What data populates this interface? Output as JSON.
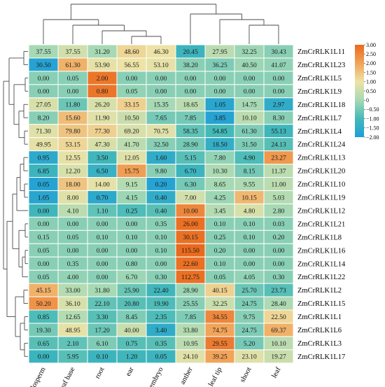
{
  "chart_data": {
    "type": "heatmap",
    "columns": [
      "endosperm",
      "leaf base",
      "root",
      "ear",
      "embryo",
      "anther",
      "leaf tip",
      "shoot",
      "leaf"
    ],
    "rows": [
      "ZmCrRLK1L11",
      "ZmCrRLK1L23",
      "ZmCrRLK1L5",
      "ZmCrRLK1L9",
      "ZmCrRLK1L18",
      "ZmCrRLK1L7",
      "ZmCrRLK1L4",
      "ZmCrRLK1L24",
      "ZmCrRLK1L13",
      "ZmCrRLK1L20",
      "ZmCrRLK1L10",
      "ZmCrRLK1L19",
      "ZmCrRLK1L12",
      "ZmCrRLK1L21",
      "ZmCrRLK1L8",
      "ZmCrRLK1L16",
      "ZmCrRLK1L14",
      "ZmCrRLK1L22",
      "ZmCrRLK1L2",
      "ZmCrRLK1L15",
      "ZmCrRLK1L1",
      "ZmCrRLK1L6",
      "ZmCrRLK1L3",
      "ZmCrRLK1L17"
    ],
    "values": [
      [
        "37.55",
        "37.55",
        "31.20",
        "48.60",
        "46.30",
        "20.45",
        "27.95",
        "32.25",
        "30.43"
      ],
      [
        "30.50",
        "61.30",
        "53.90",
        "56.55",
        "53.10",
        "38.20",
        "36.25",
        "40.50",
        "41.07"
      ],
      [
        "0.00",
        "0.05",
        "2.00",
        "0.00",
        "0.00",
        "0.00",
        "0.00",
        "0.00",
        "0.00"
      ],
      [
        "0.00",
        "0.00",
        "0.80",
        "0.05",
        "0.00",
        "0.00",
        "0.00",
        "0.00",
        "0.00"
      ],
      [
        "27.05",
        "11.80",
        "26.20",
        "33.15",
        "15.35",
        "18.65",
        "1.05",
        "14.75",
        "2.97"
      ],
      [
        "8.20",
        "15.60",
        "11.90",
        "10.50",
        "7.65",
        "7.85",
        "3.85",
        "10.10",
        "8.30"
      ],
      [
        "71.30",
        "79.80",
        "77.30",
        "69.20",
        "70.75",
        "58.35",
        "54.85",
        "61.30",
        "55.13"
      ],
      [
        "49.95",
        "53.15",
        "47.30",
        "41.70",
        "32.50",
        "28.90",
        "18.50",
        "31.50",
        "24.13"
      ],
      [
        "0.95",
        "12.55",
        "3.50",
        "12.05",
        "1.60",
        "5.15",
        "7.80",
        "4.90",
        "23.27"
      ],
      [
        "6.85",
        "12.20",
        "6.50",
        "15.75",
        "9.80",
        "6.70",
        "10.30",
        "8.15",
        "11.37"
      ],
      [
        "0.05",
        "18.00",
        "14.00",
        "9.15",
        "0.20",
        "6.30",
        "8.65",
        "9.55",
        "11.00"
      ],
      [
        "1.05",
        "8.00",
        "0.70",
        "4.15",
        "0.40",
        "7.00",
        "4.25",
        "10.15",
        "5.03"
      ],
      [
        "0.00",
        "4.10",
        "1.10",
        "0.25",
        "0.40",
        "10.00",
        "3.45",
        "4.80",
        "2.80"
      ],
      [
        "0.00",
        "0.00",
        "0.00",
        "0.00",
        "0.35",
        "26.00",
        "0.10",
        "0.10",
        "0.03"
      ],
      [
        "0.15",
        "0.05",
        "0.10",
        "0.10",
        "0.10",
        "30.15",
        "0.25",
        "0.10",
        "0.20"
      ],
      [
        "0.05",
        "0.00",
        "0.00",
        "0.00",
        "0.10",
        "115.50",
        "0.20",
        "0.00",
        "0.00"
      ],
      [
        "0.00",
        "0.35",
        "0.00",
        "0.80",
        "0.00",
        "22.60",
        "0.10",
        "0.00",
        "0.00"
      ],
      [
        "0.05",
        "4.00",
        "0.00",
        "6.70",
        "0.30",
        "112.75",
        "0.05",
        "4.05",
        "0.30"
      ],
      [
        "45.15",
        "33.00",
        "31.80",
        "25.90",
        "22.40",
        "28.90",
        "40.15",
        "25.70",
        "23.73"
      ],
      [
        "50.20",
        "36.10",
        "22.10",
        "20.80",
        "19.90",
        "25.55",
        "32.25",
        "24.75",
        "28.40"
      ],
      [
        "0.85",
        "12.65",
        "3.30",
        "8.45",
        "2.35",
        "7.85",
        "34.55",
        "9.75",
        "22.50"
      ],
      [
        "19.30",
        "48.95",
        "17.20",
        "40.00",
        "3.40",
        "33.80",
        "74.75",
        "24.75",
        "69.37"
      ],
      [
        "0.65",
        "2.10",
        "6.10",
        "0.75",
        "0.35",
        "10.95",
        "29.55",
        "5.20",
        "10.10"
      ],
      [
        "0.00",
        "5.95",
        "0.10",
        "1.20",
        "0.05",
        "24.10",
        "39.25",
        "23.10",
        "19.27"
      ]
    ],
    "color_z": [
      [
        0.0,
        0.6,
        0.0,
        1.2,
        1.0,
        -1.2,
        0.3,
        -0.1,
        -0.3
      ],
      [
        -1.8,
        1.8,
        0.9,
        1.0,
        0.9,
        -0.3,
        -0.4,
        -0.1,
        -0.2
      ],
      [
        -0.3,
        -0.3,
        2.8,
        -0.3,
        -0.3,
        -0.3,
        -0.3,
        -0.3,
        -0.3
      ],
      [
        -0.3,
        -0.3,
        2.8,
        -0.2,
        -0.3,
        -0.3,
        -0.3,
        -0.3,
        -0.3
      ],
      [
        0.7,
        -0.6,
        0.7,
        1.3,
        0.0,
        0.3,
        -1.7,
        0.0,
        -1.5
      ],
      [
        -0.3,
        1.6,
        0.8,
        0.5,
        -0.5,
        -0.5,
        -1.8,
        0.3,
        -0.3
      ],
      [
        0.8,
        1.5,
        1.3,
        0.7,
        0.8,
        -0.7,
        -1.0,
        -0.4,
        -1.1
      ],
      [
        0.9,
        1.2,
        0.7,
        0.3,
        -0.3,
        -0.5,
        -1.4,
        -0.4,
        -0.8
      ],
      [
        -1.6,
        0.9,
        -1.1,
        0.8,
        -1.5,
        -0.8,
        -0.2,
        -0.9,
        2.2
      ],
      [
        -1.2,
        0.7,
        -1.3,
        2.1,
        -0.3,
        -1.2,
        0.1,
        -0.5,
        0.3
      ],
      [
        -1.8,
        1.5,
        0.9,
        0.2,
        -1.8,
        -0.5,
        0.0,
        0.1,
        0.3
      ],
      [
        -1.7,
        0.8,
        -1.6,
        -0.1,
        -1.5,
        0.6,
        -0.1,
        1.7,
        0.2
      ],
      [
        -1.1,
        0.3,
        -0.7,
        -0.9,
        -0.8,
        2.5,
        0.2,
        0.7,
        0.0
      ],
      [
        -0.3,
        -0.3,
        -0.3,
        -0.3,
        -0.3,
        2.9,
        -0.3,
        -0.3,
        -0.3
      ],
      [
        -0.3,
        -0.3,
        -0.3,
        -0.3,
        -0.3,
        2.9,
        -0.3,
        -0.3,
        -0.3
      ],
      [
        -0.3,
        -0.3,
        -0.3,
        -0.3,
        -0.3,
        3.0,
        -0.3,
        -0.3,
        -0.3
      ],
      [
        -0.3,
        -0.3,
        -0.3,
        -0.3,
        -0.3,
        2.9,
        -0.3,
        -0.3,
        -0.3
      ],
      [
        -0.3,
        -0.2,
        -0.3,
        -0.1,
        -0.3,
        2.9,
        -0.3,
        -0.2,
        -0.3
      ],
      [
        1.8,
        0.2,
        0.0,
        -0.6,
        -1.1,
        -0.1,
        1.3,
        -0.6,
        -0.8
      ],
      [
        2.3,
        0.7,
        -0.7,
        -0.8,
        -0.9,
        -0.3,
        0.5,
        -0.4,
        0.1
      ],
      [
        -0.9,
        0.2,
        -0.8,
        -0.4,
        -0.9,
        -0.4,
        2.5,
        -0.3,
        1.2
      ],
      [
        -0.5,
        0.9,
        -0.6,
        0.5,
        -1.5,
        0.2,
        2.0,
        -0.4,
        1.8
      ],
      [
        -0.8,
        -0.7,
        -0.4,
        -0.8,
        -0.8,
        0.3,
        2.7,
        -0.5,
        0.3
      ],
      [
        -1.2,
        -0.8,
        -1.2,
        -1.1,
        -1.2,
        0.8,
        2.0,
        0.8,
        0.5
      ]
    ],
    "color_scale": {
      "ticks": [
        "3.00",
        "2.50",
        "2.00",
        "1.50",
        "1.00",
        "0.50",
        "0",
        "−0.50",
        "−1.00",
        "−1.50",
        "−2.00"
      ],
      "min": -2,
      "max": 3,
      "colors": [
        "#1e9ed8",
        "#44b9b8",
        "#a6d9b4",
        "#ede3a6",
        "#f1a45a",
        "#e96a1e"
      ]
    },
    "legend_placement": "top-right",
    "dendrogram_rows": true,
    "dendrogram_columns": true
  }
}
